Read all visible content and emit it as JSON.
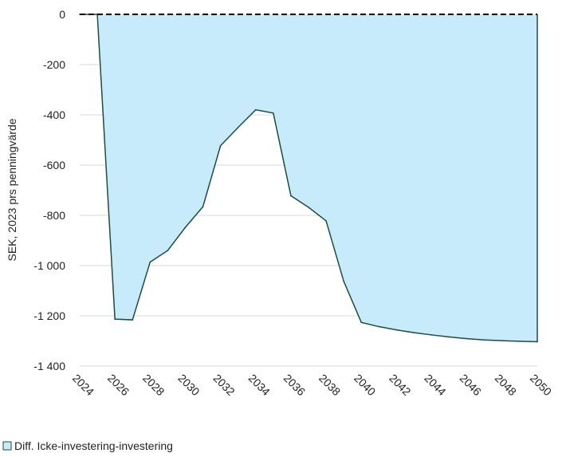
{
  "chart_data": {
    "type": "area",
    "title": "",
    "xlabel": "",
    "ylabel": "SEK, 2023 prs penningvärde",
    "x": [
      2024,
      2025,
      2026,
      2027,
      2028,
      2029,
      2030,
      2031,
      2032,
      2033,
      2034,
      2035,
      2036,
      2037,
      2038,
      2039,
      2040,
      2041,
      2042,
      2043,
      2044,
      2045,
      2046,
      2047,
      2048,
      2049,
      2050
    ],
    "x_ticks": [
      "2024",
      "2026",
      "2028",
      "2030",
      "2032",
      "2034",
      "2036",
      "2038",
      "2040",
      "2042",
      "2044",
      "2046",
      "2048",
      "2050"
    ],
    "y_ticks": [
      "0",
      "-200",
      "-400",
      "-600",
      "-800",
      "-1 000",
      "-1 200",
      "-1 400"
    ],
    "ylim": [
      -1400,
      0
    ],
    "xlim": [
      2024,
      2050
    ],
    "grid": true,
    "legend_position": "bottom-left",
    "series": [
      {
        "name": "Diff. Icke-investering-investering",
        "values": [
          0,
          0,
          -1213,
          -1216,
          -986,
          -940,
          -848,
          -766,
          -523,
          -450,
          -380,
          -393,
          -722,
          -768,
          -822,
          -1062,
          -1226,
          -1243,
          -1256,
          -1267,
          -1276,
          -1284,
          -1291,
          -1296,
          -1299,
          -1301,
          -1303
        ],
        "fill_color": "#c8ebfb",
        "line_color": "#1e4d3a"
      }
    ],
    "baseline": {
      "value": 0,
      "style": "dashed",
      "color": "#000000"
    }
  }
}
